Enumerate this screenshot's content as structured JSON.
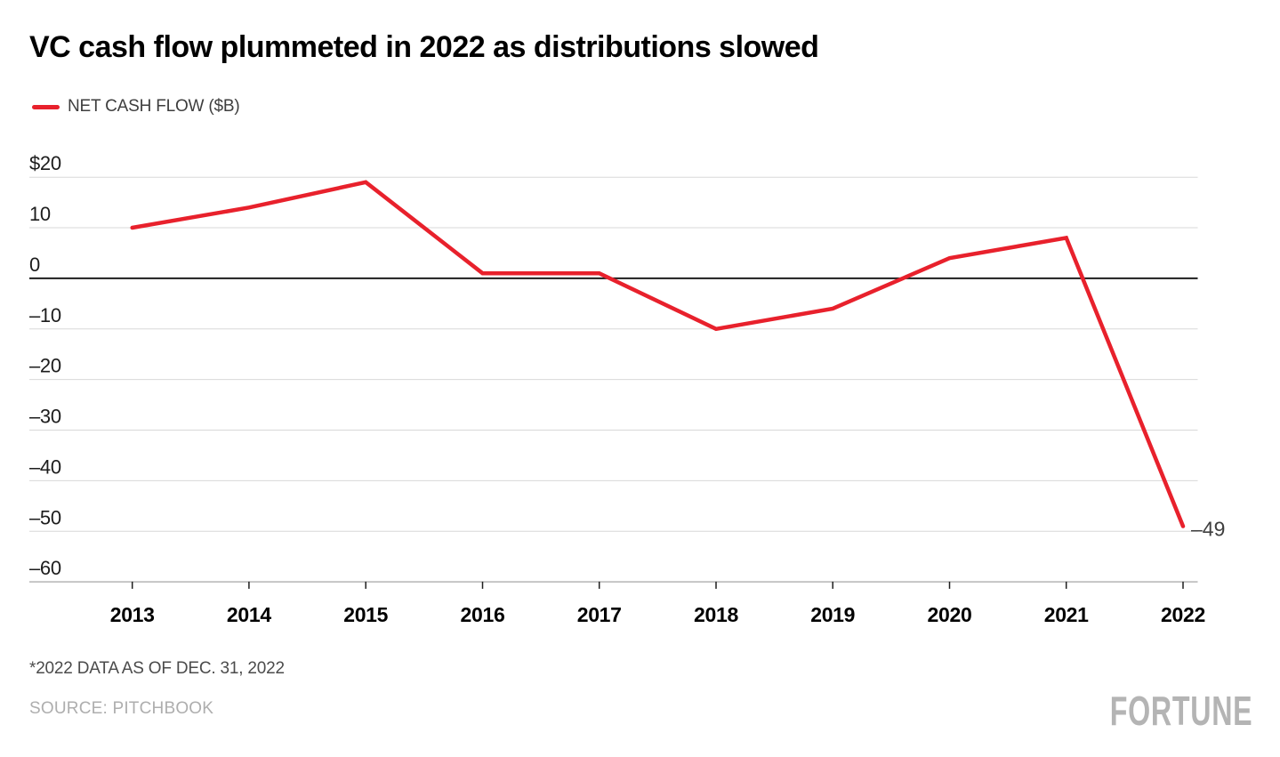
{
  "title": "VC cash flow plummeted in 2022 as distributions slowed",
  "legend": {
    "label": "NET CASH FLOW ($B)"
  },
  "footnote": "*2022 DATA AS OF DEC. 31, 2022",
  "source": "SOURCE: PITCHBOOK",
  "logo": "FORTUNE",
  "colors": {
    "line": "#e8212c",
    "grid": "#d8d8d8",
    "zero_axis": "#1e1e1e",
    "bottom_axis": "#c4c4c4",
    "tick_mark": "#1e1e1e",
    "y_label": "#1c1c1c",
    "x_label": "#000000",
    "annotation": "#3f3f3f",
    "title": "#000000",
    "legend_text": "#3e3e3e",
    "footnote": "#4b4b4b",
    "source": "#aeaeae",
    "logo": "#b4b4b4"
  },
  "chart_data": {
    "type": "line",
    "title": "VC cash flow plummeted in 2022 as distributions slowed",
    "categories": [
      "2013",
      "2014",
      "2015",
      "2016",
      "2017",
      "2018",
      "2019",
      "2020",
      "2021",
      "2022"
    ],
    "series": [
      {
        "name": "NET CASH FLOW ($B)",
        "values": [
          10,
          14,
          19,
          1,
          1,
          -10,
          -6,
          4,
          8,
          -49
        ]
      }
    ],
    "yticks": [
      {
        "label": "$20",
        "value": 20
      },
      {
        "label": "10",
        "value": 10
      },
      {
        "label": "0",
        "value": 0
      },
      {
        "label": "–10",
        "value": -10
      },
      {
        "label": "–20",
        "value": -20
      },
      {
        "label": "–30",
        "value": -30
      },
      {
        "label": "–40",
        "value": -40
      },
      {
        "label": "–50",
        "value": -50
      },
      {
        "label": "–60",
        "value": -60
      }
    ],
    "ylim": [
      -60,
      20
    ],
    "xlabel": "",
    "ylabel": "NET CASH FLOW ($B)",
    "grid": "horizontal",
    "legend_position": "top-left",
    "annotation": {
      "text": "–49",
      "category": "2022",
      "value": -49
    }
  }
}
